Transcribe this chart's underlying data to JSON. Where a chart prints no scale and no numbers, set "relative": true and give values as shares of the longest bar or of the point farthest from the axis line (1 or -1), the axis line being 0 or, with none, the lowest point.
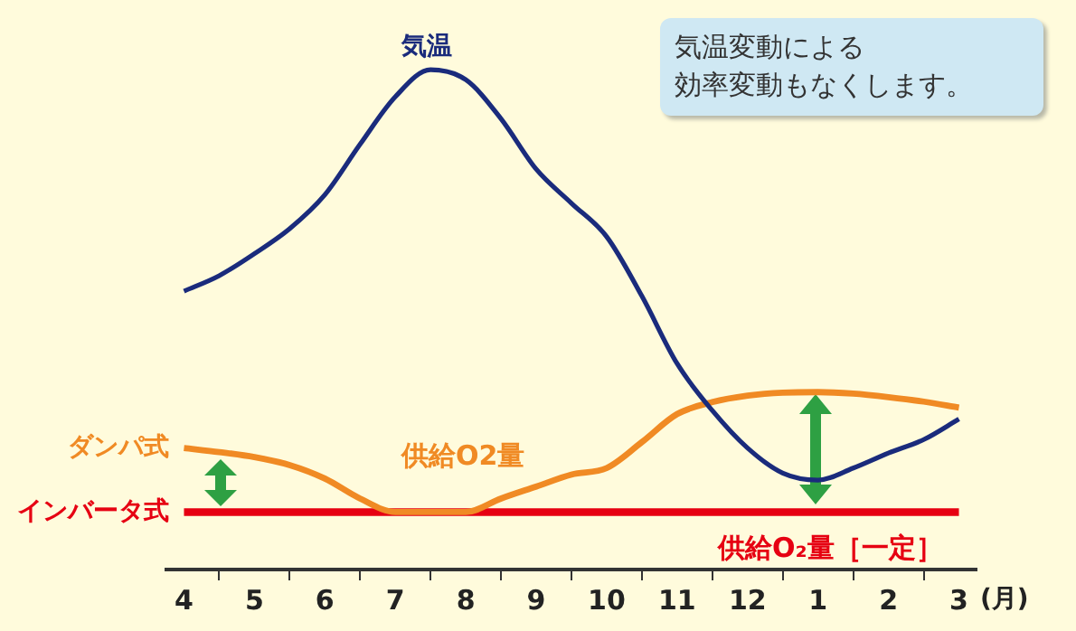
{
  "chart_data": {
    "type": "line",
    "relative": true,
    "xlabel": "(月)",
    "categories": [
      "4",
      null,
      "5",
      null,
      "6",
      null,
      "7",
      null,
      "8",
      null,
      "9",
      null,
      "10",
      null,
      "11",
      null,
      "12",
      null,
      "1",
      null,
      "2",
      null,
      "3"
    ],
    "series": [
      {
        "name": "気温",
        "color": "#1a2b7c",
        "values": [
          0.557,
          0.588,
          0.632,
          0.682,
          0.75,
          0.851,
          0.946,
          1,
          0.98,
          0.902,
          0.801,
          0.733,
          0.666,
          0.547,
          0.412,
          0.318,
          0.243,
          0.193,
          0.179,
          0.203,
          0.233,
          0.26,
          0.301
        ]
      },
      {
        "name": "ダンパ式",
        "color": "#f08a24",
        "values": [
          0.243,
          0.235,
          0.225,
          0.209,
          0.182,
          0.142,
          0.115,
          0.115,
          0.115,
          0.142,
          0.166,
          0.19,
          0.203,
          0.255,
          0.311,
          0.335,
          0.348,
          0.354,
          0.355,
          0.352,
          0.345,
          0.336,
          0.324
        ]
      },
      {
        "name": "インバータ式",
        "color": "#e60012",
        "values": [
          0.115,
          0.115,
          0.115,
          0.115,
          0.115,
          0.115,
          0.115,
          0.115,
          0.115,
          0.115,
          0.115,
          0.115,
          0.115,
          0.115,
          0.115,
          0.115,
          0.115,
          0.115,
          0.115,
          0.115,
          0.115,
          0.115,
          0.115
        ]
      }
    ],
    "annotations": [
      "供給O2量",
      "供給O₂量［一定］",
      "気温変動による",
      "効率変動もなくします。"
    ],
    "grid": false,
    "legend": false,
    "marker": "none",
    "line_style": "solid"
  }
}
